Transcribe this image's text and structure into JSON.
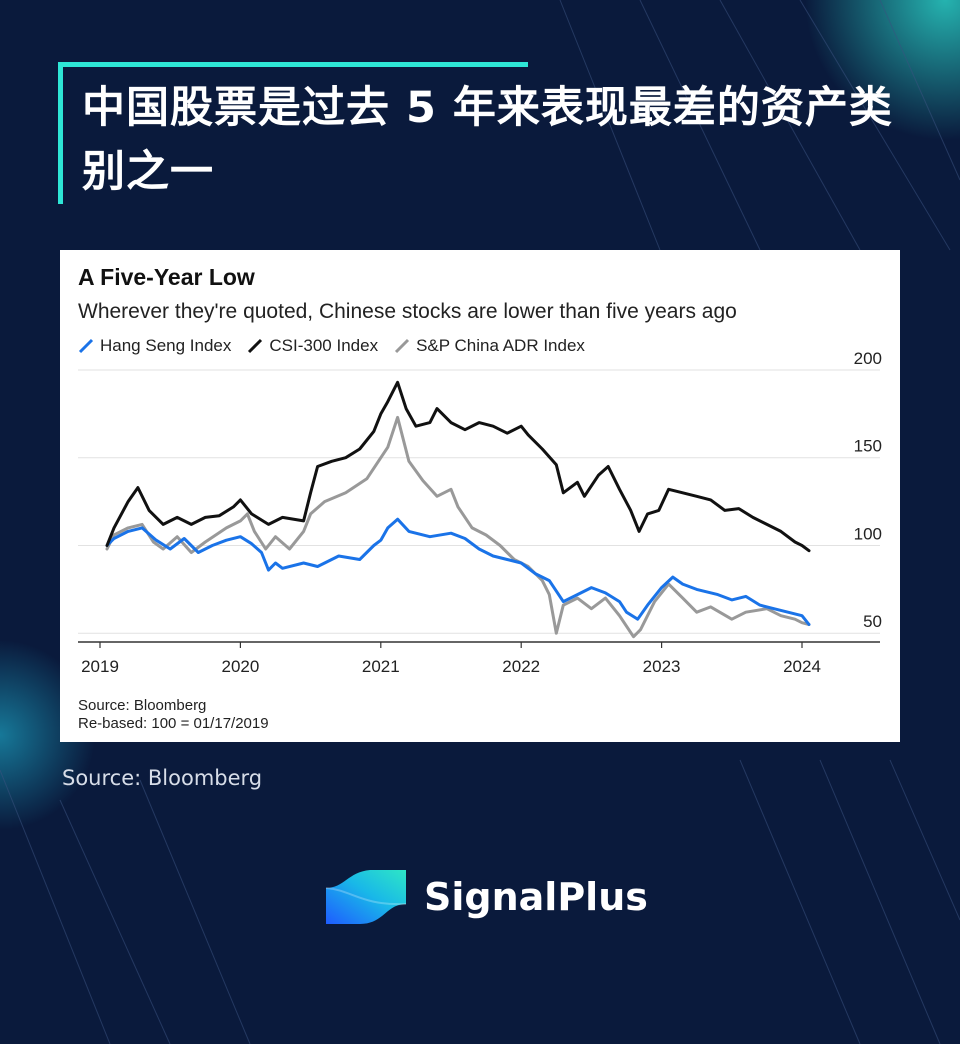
{
  "page": {
    "headline": "中国股票是过去 5 年来表现最差的资产类别之一",
    "source_note": "Source: Bloomberg",
    "brand_name": "SignalPlus",
    "accent_color": "#2ee6d6",
    "background_color": "#0a1a3c"
  },
  "chart_data": {
    "type": "line",
    "title": "A Five-Year Low",
    "subtitle": "Wherever they're quoted, Chinese stocks are lower than five years ago",
    "source": "Source: Bloomberg",
    "note": "Re-based: 100 = 01/17/2019",
    "ylim": [
      45,
      200
    ],
    "yticks": [
      50,
      100,
      150,
      200
    ],
    "y_axis_side": "right",
    "xlim": [
      2019,
      2024.5
    ],
    "xticks": [
      2019,
      2020,
      2021,
      2022,
      2023,
      2024
    ],
    "grid": true,
    "legend_position": "top-left",
    "series": [
      {
        "name": "Hang Seng Index",
        "color": "#1a73e8",
        "points": [
          [
            2019.05,
            100
          ],
          [
            2019.1,
            104
          ],
          [
            2019.2,
            108
          ],
          [
            2019.3,
            110
          ],
          [
            2019.4,
            103
          ],
          [
            2019.5,
            98
          ],
          [
            2019.6,
            104
          ],
          [
            2019.7,
            96
          ],
          [
            2019.8,
            100
          ],
          [
            2019.9,
            103
          ],
          [
            2020.0,
            105
          ],
          [
            2020.08,
            101
          ],
          [
            2020.15,
            96
          ],
          [
            2020.2,
            86
          ],
          [
            2020.25,
            90
          ],
          [
            2020.3,
            87
          ],
          [
            2020.45,
            90
          ],
          [
            2020.55,
            88
          ],
          [
            2020.7,
            94
          ],
          [
            2020.85,
            92
          ],
          [
            2020.95,
            100
          ],
          [
            2021.0,
            103
          ],
          [
            2021.05,
            110
          ],
          [
            2021.12,
            115
          ],
          [
            2021.2,
            108
          ],
          [
            2021.35,
            105
          ],
          [
            2021.5,
            107
          ],
          [
            2021.6,
            104
          ],
          [
            2021.7,
            98
          ],
          [
            2021.8,
            94
          ],
          [
            2021.9,
            92
          ],
          [
            2022.0,
            90
          ],
          [
            2022.1,
            84
          ],
          [
            2022.2,
            80
          ],
          [
            2022.3,
            68
          ],
          [
            2022.4,
            72
          ],
          [
            2022.5,
            76
          ],
          [
            2022.6,
            73
          ],
          [
            2022.7,
            68
          ],
          [
            2022.75,
            62
          ],
          [
            2022.83,
            58
          ],
          [
            2022.9,
            66
          ],
          [
            2023.0,
            76
          ],
          [
            2023.08,
            82
          ],
          [
            2023.15,
            78
          ],
          [
            2023.25,
            75
          ],
          [
            2023.4,
            72
          ],
          [
            2023.5,
            69
          ],
          [
            2023.6,
            71
          ],
          [
            2023.7,
            66
          ],
          [
            2023.8,
            64
          ],
          [
            2023.9,
            62
          ],
          [
            2024.0,
            60
          ],
          [
            2024.05,
            55
          ]
        ]
      },
      {
        "name": "CSI-300 Index",
        "color": "#111111",
        "points": [
          [
            2019.05,
            100
          ],
          [
            2019.1,
            110
          ],
          [
            2019.2,
            125
          ],
          [
            2019.27,
            133
          ],
          [
            2019.35,
            120
          ],
          [
            2019.45,
            112
          ],
          [
            2019.55,
            116
          ],
          [
            2019.65,
            112
          ],
          [
            2019.75,
            116
          ],
          [
            2019.85,
            117
          ],
          [
            2019.95,
            122
          ],
          [
            2020.0,
            126
          ],
          [
            2020.08,
            118
          ],
          [
            2020.2,
            112
          ],
          [
            2020.3,
            116
          ],
          [
            2020.45,
            114
          ],
          [
            2020.5,
            130
          ],
          [
            2020.55,
            145
          ],
          [
            2020.65,
            148
          ],
          [
            2020.75,
            150
          ],
          [
            2020.85,
            155
          ],
          [
            2020.95,
            165
          ],
          [
            2021.0,
            175
          ],
          [
            2021.05,
            182
          ],
          [
            2021.12,
            193
          ],
          [
            2021.18,
            178
          ],
          [
            2021.25,
            168
          ],
          [
            2021.35,
            170
          ],
          [
            2021.4,
            178
          ],
          [
            2021.5,
            170
          ],
          [
            2021.6,
            166
          ],
          [
            2021.7,
            170
          ],
          [
            2021.8,
            168
          ],
          [
            2021.9,
            164
          ],
          [
            2022.0,
            168
          ],
          [
            2022.05,
            163
          ],
          [
            2022.15,
            155
          ],
          [
            2022.25,
            146
          ],
          [
            2022.3,
            130
          ],
          [
            2022.4,
            136
          ],
          [
            2022.45,
            128
          ],
          [
            2022.55,
            140
          ],
          [
            2022.62,
            145
          ],
          [
            2022.7,
            132
          ],
          [
            2022.78,
            120
          ],
          [
            2022.84,
            108
          ],
          [
            2022.9,
            118
          ],
          [
            2022.98,
            120
          ],
          [
            2023.05,
            132
          ],
          [
            2023.15,
            130
          ],
          [
            2023.25,
            128
          ],
          [
            2023.35,
            126
          ],
          [
            2023.45,
            120
          ],
          [
            2023.55,
            121
          ],
          [
            2023.65,
            116
          ],
          [
            2023.75,
            112
          ],
          [
            2023.85,
            108
          ],
          [
            2023.95,
            102
          ],
          [
            2024.0,
            100
          ],
          [
            2024.05,
            97
          ]
        ]
      },
      {
        "name": "S&P China ADR Index",
        "color": "#999999",
        "points": [
          [
            2019.05,
            98
          ],
          [
            2019.1,
            106
          ],
          [
            2019.2,
            110
          ],
          [
            2019.3,
            112
          ],
          [
            2019.38,
            102
          ],
          [
            2019.45,
            98
          ],
          [
            2019.55,
            105
          ],
          [
            2019.65,
            96
          ],
          [
            2019.75,
            102
          ],
          [
            2019.9,
            110
          ],
          [
            2020.0,
            114
          ],
          [
            2020.05,
            118
          ],
          [
            2020.1,
            108
          ],
          [
            2020.18,
            98
          ],
          [
            2020.25,
            105
          ],
          [
            2020.35,
            98
          ],
          [
            2020.45,
            108
          ],
          [
            2020.5,
            118
          ],
          [
            2020.6,
            125
          ],
          [
            2020.75,
            130
          ],
          [
            2020.9,
            138
          ],
          [
            2021.0,
            150
          ],
          [
            2021.05,
            156
          ],
          [
            2021.12,
            173
          ],
          [
            2021.2,
            148
          ],
          [
            2021.3,
            137
          ],
          [
            2021.4,
            128
          ],
          [
            2021.5,
            132
          ],
          [
            2021.55,
            122
          ],
          [
            2021.65,
            110
          ],
          [
            2021.75,
            106
          ],
          [
            2021.85,
            100
          ],
          [
            2021.95,
            92
          ],
          [
            2022.05,
            88
          ],
          [
            2022.15,
            80
          ],
          [
            2022.2,
            72
          ],
          [
            2022.25,
            50
          ],
          [
            2022.3,
            66
          ],
          [
            2022.4,
            70
          ],
          [
            2022.5,
            64
          ],
          [
            2022.6,
            70
          ],
          [
            2022.7,
            60
          ],
          [
            2022.8,
            48
          ],
          [
            2022.85,
            52
          ],
          [
            2022.95,
            68
          ],
          [
            2023.05,
            78
          ],
          [
            2023.15,
            70
          ],
          [
            2023.25,
            62
          ],
          [
            2023.35,
            65
          ],
          [
            2023.5,
            58
          ],
          [
            2023.6,
            62
          ],
          [
            2023.75,
            64
          ],
          [
            2023.85,
            60
          ],
          [
            2023.95,
            58
          ],
          [
            2024.0,
            56
          ],
          [
            2024.05,
            55
          ]
        ]
      }
    ]
  }
}
